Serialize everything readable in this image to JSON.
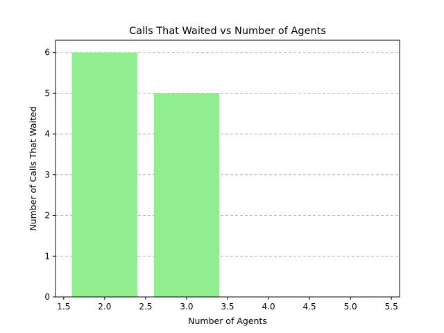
{
  "chart_data": {
    "type": "bar",
    "title": "Calls That Waited vs Number of Agents",
    "xlabel": "Number of Agents",
    "ylabel": "Number of Calls That Waited",
    "x": [
      2,
      3,
      4,
      5
    ],
    "values": [
      6,
      5,
      0,
      0
    ],
    "bar_width": 0.8,
    "xlim": [
      1.4,
      5.6
    ],
    "ylim": [
      0,
      6.3
    ],
    "xticks": [
      1.5,
      2.0,
      2.5,
      3.0,
      3.5,
      4.0,
      4.5,
      5.0,
      5.5
    ],
    "xtick_labels": [
      "1.5",
      "2.0",
      "2.5",
      "3.0",
      "3.5",
      "4.0",
      "4.5",
      "5.0",
      "5.5"
    ],
    "yticks": [
      0,
      1,
      2,
      3,
      4,
      5,
      6
    ],
    "ytick_labels": [
      "0",
      "1",
      "2",
      "3",
      "4",
      "5",
      "6"
    ],
    "grid": "y-dashed",
    "colors": {
      "bar": "#90ee90"
    }
  }
}
